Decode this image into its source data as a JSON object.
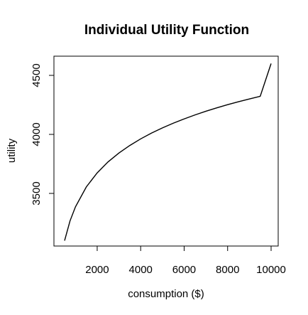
{
  "chart_data": {
    "type": "line",
    "title": "Individual Utility Function",
    "xlabel": "consumption ($)",
    "ylabel": "utility",
    "xlim": [
      500,
      10000
    ],
    "ylim": [
      3100,
      4600
    ],
    "xticks": [
      2000,
      4000,
      6000,
      8000,
      10000
    ],
    "yticks": [
      3500,
      4000,
      4500
    ],
    "xtick_labels": [
      "2000",
      "4000",
      "6000",
      "8000",
      "10000"
    ],
    "ytick_labels": [
      "3500",
      "4000",
      "4500"
    ],
    "grid": false,
    "line_color": "#000000",
    "series": [
      {
        "x": [
          500,
          750,
          1000,
          1500,
          2000,
          2500,
          3000,
          3500,
          4000,
          4500,
          5000,
          5500,
          6000,
          6500,
          7000,
          7500,
          8000,
          8500,
          9000,
          9500,
          10000
        ],
        "values": [
          3100,
          3267,
          3386,
          3555,
          3674,
          3767,
          3842,
          3906,
          3962,
          4011,
          4055,
          4095,
          4131,
          4165,
          4196,
          4225,
          4252,
          4277,
          4300,
          4323,
          4600
        ]
      }
    ]
  }
}
